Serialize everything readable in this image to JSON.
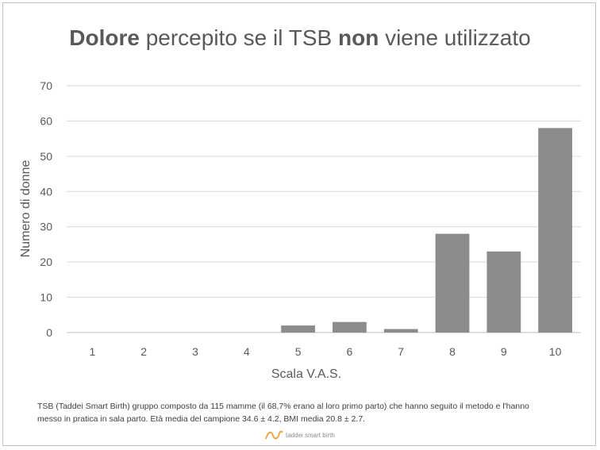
{
  "title": {
    "bold1": "Dolore",
    "normal1": " percepito se il TSB ",
    "bold2": "non",
    "normal2": " viene utilizzato"
  },
  "chart_data": {
    "type": "bar",
    "title": "Dolore percepito se il TSB non viene utilizzato",
    "xlabel": "Scala V.A.S.",
    "ylabel": "Numero di donne",
    "categories": [
      "1",
      "2",
      "3",
      "4",
      "5",
      "6",
      "7",
      "8",
      "9",
      "10"
    ],
    "values": [
      0,
      0,
      0,
      0,
      2,
      3,
      1,
      28,
      23,
      58
    ],
    "ylim": [
      0,
      70
    ],
    "yticks": [
      0,
      10,
      20,
      30,
      40,
      50,
      60,
      70
    ],
    "grid": true,
    "bar_color": "#8c8c8c"
  },
  "note": {
    "line1": "TSB (Taddei Smart Birth) gruppo composto da 115 mamme (il 68,7% erano al loro primo parto) che hanno seguito il metodo e l'hanno",
    "line2": "messo in pratica in sala parto. Età media del campione 34.6 ± 4.2, BMI media 20.8 ± 2.7."
  },
  "logo": {
    "text": "taddei smart birth",
    "color": "#e8a03a"
  }
}
